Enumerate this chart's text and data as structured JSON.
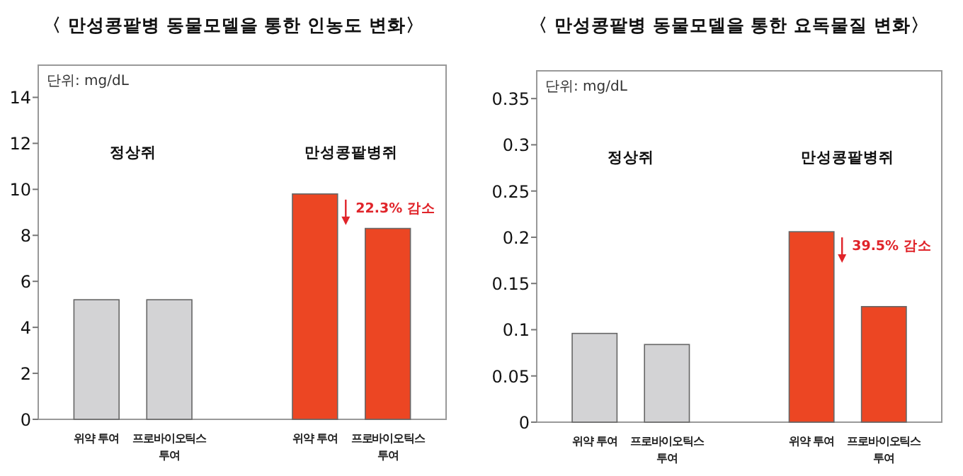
{
  "chart_data": [
    {
      "type": "bar",
      "title": "〈 만성콩팥병 동물모델을 통한 인농도 변화〉",
      "categories": [
        "위약 투여",
        "프로바이오틱스 투여",
        null,
        "위약 투여",
        "프로바이오틱스 투여"
      ],
      "values": [
        5.2,
        5.2,
        null,
        9.8,
        8.3
      ],
      "colors": [
        "#d3d3d5",
        "#d3d3d5",
        null,
        "#ec4623",
        "#ec4623"
      ],
      "ylim": [
        0,
        15.4
      ],
      "yticks": [
        0,
        2,
        4,
        6,
        8,
        10,
        12,
        14
      ],
      "annotations": [
        "단위: mg/dL",
        "정상쥐",
        "만성콩팥병쥐",
        "22.3% 감소"
      ]
    },
    {
      "type": "bar",
      "title": "〈 만성콩팥병 동물모델을 통한 요독물질 변화〉",
      "categories": [
        "위약 투여",
        "프로바이오틱스 투여",
        null,
        "위약 투여",
        "프로바이오틱스 투여"
      ],
      "values": [
        0.096,
        0.084,
        null,
        0.206,
        0.125
      ],
      "colors": [
        "#d3d3d5",
        "#d3d3d5",
        null,
        "#ec4623",
        "#ec4623"
      ],
      "ylim": [
        0,
        0.38
      ],
      "yticks": [
        0,
        0.05,
        0.1,
        0.15,
        0.2,
        0.25,
        0.3,
        0.35
      ],
      "annotations": [
        "단위: mg/dL",
        "정상쥐",
        "만성콩팥병쥐",
        "39.5% 감소"
      ]
    }
  ]
}
